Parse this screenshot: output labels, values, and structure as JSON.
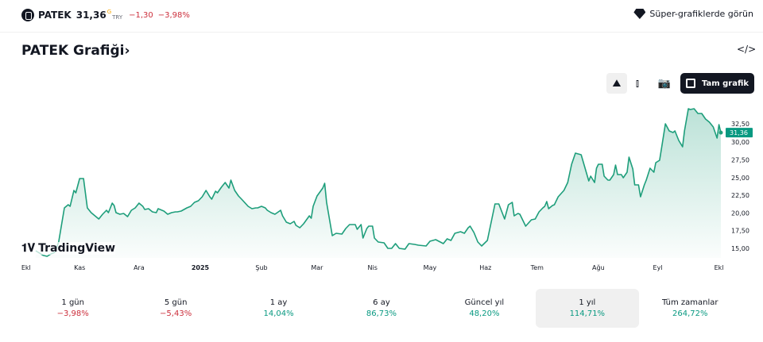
{
  "header": {
    "symbol": "PATEK",
    "price": "31,36",
    "price_flag": "G",
    "currency": "TRY",
    "change": "−1,30",
    "change_percent": "−3,98%",
    "super_charts_label": "Süper-grafiklerde görün"
  },
  "title": "PATEK Grafiği",
  "title_chevron": "›",
  "embed_icon": "</>",
  "toolbar": {
    "full_chart_label": "Tam grafik"
  },
  "watermark": "TradingView",
  "colors": {
    "line": "#1e9e7b",
    "up": "#089981",
    "down": "#cc2f3c"
  },
  "chart_data": {
    "type": "area",
    "title": "PATEK",
    "x_unit": "days since start",
    "xlim": [
      0,
      365
    ],
    "ylim": [
      13.5,
      35.5
    ],
    "y_ticks": [
      "15,00",
      "17,50",
      "20,00",
      "22,50",
      "25,00",
      "27,50",
      "30,00",
      "32,50"
    ],
    "y_tick_values": [
      15,
      17.5,
      20,
      22.5,
      25,
      27.5,
      30,
      32.5
    ],
    "x_ticks": [
      {
        "label": "Ekl",
        "day": 2
      },
      {
        "label": "Kas",
        "day": 30
      },
      {
        "label": "Ara",
        "day": 61
      },
      {
        "label": "2025",
        "day": 93,
        "bold": true
      },
      {
        "label": "Şub",
        "day": 125
      },
      {
        "label": "Mar",
        "day": 154
      },
      {
        "label": "Nis",
        "day": 183
      },
      {
        "label": "May",
        "day": 213
      },
      {
        "label": "Haz",
        "day": 242
      },
      {
        "label": "Tem",
        "day": 269
      },
      {
        "label": "Ağu",
        "day": 301
      },
      {
        "label": "Eyl",
        "day": 332
      },
      {
        "label": "Ekl",
        "day": 364
      }
    ],
    "last_value_label": "31,36",
    "last_value": 31.36,
    "points": [
      [
        7,
        14.66
      ],
      [
        11,
        14.0
      ],
      [
        13,
        13.88
      ],
      [
        15,
        14.21
      ],
      [
        17,
        14.44
      ],
      [
        19,
        15.9
      ],
      [
        22,
        20.72
      ],
      [
        24,
        21.17
      ],
      [
        25,
        20.95
      ],
      [
        27,
        23.19
      ],
      [
        28,
        22.85
      ],
      [
        30,
        24.87
      ],
      [
        32,
        24.87
      ],
      [
        34,
        20.72
      ],
      [
        36,
        20.05
      ],
      [
        38,
        19.6
      ],
      [
        40,
        19.15
      ],
      [
        42,
        19.82
      ],
      [
        44,
        20.38
      ],
      [
        45,
        20.05
      ],
      [
        47,
        21.39
      ],
      [
        48,
        21.06
      ],
      [
        49,
        20.05
      ],
      [
        51,
        19.82
      ],
      [
        53,
        19.94
      ],
      [
        55,
        19.49
      ],
      [
        57,
        20.38
      ],
      [
        59,
        20.72
      ],
      [
        61,
        21.39
      ],
      [
        63,
        20.95
      ],
      [
        64,
        20.5
      ],
      [
        66,
        20.61
      ],
      [
        68,
        20.16
      ],
      [
        70,
        20.05
      ],
      [
        71,
        20.61
      ],
      [
        74,
        20.27
      ],
      [
        76,
        19.82
      ],
      [
        78,
        20.05
      ],
      [
        80,
        20.16
      ],
      [
        81,
        20.16
      ],
      [
        83,
        20.27
      ],
      [
        86,
        20.72
      ],
      [
        88,
        20.95
      ],
      [
        90,
        21.51
      ],
      [
        92,
        21.73
      ],
      [
        94,
        22.29
      ],
      [
        96,
        23.19
      ],
      [
        98,
        22.29
      ],
      [
        99,
        21.96
      ],
      [
        101,
        23.08
      ],
      [
        102,
        22.85
      ],
      [
        104,
        23.64
      ],
      [
        106,
        24.31
      ],
      [
        108,
        23.53
      ],
      [
        109,
        24.65
      ],
      [
        111,
        23.19
      ],
      [
        113,
        22.4
      ],
      [
        115,
        21.84
      ],
      [
        118,
        20.95
      ],
      [
        120,
        20.61
      ],
      [
        122,
        20.72
      ],
      [
        123,
        20.72
      ],
      [
        125,
        20.95
      ],
      [
        127,
        20.72
      ],
      [
        128,
        20.38
      ],
      [
        130,
        20.05
      ],
      [
        132,
        19.82
      ],
      [
        135,
        20.38
      ],
      [
        136,
        19.6
      ],
      [
        138,
        18.7
      ],
      [
        140,
        18.48
      ],
      [
        142,
        18.81
      ],
      [
        143,
        18.25
      ],
      [
        145,
        17.92
      ],
      [
        147,
        18.48
      ],
      [
        150,
        19.6
      ],
      [
        151,
        19.26
      ],
      [
        152,
        20.95
      ],
      [
        154,
        22.4
      ],
      [
        157,
        23.53
      ],
      [
        158,
        24.2
      ],
      [
        159,
        21.51
      ],
      [
        162,
        16.79
      ],
      [
        164,
        17.13
      ],
      [
        167,
        17.02
      ],
      [
        169,
        17.8
      ],
      [
        171,
        18.37
      ],
      [
        174,
        18.37
      ],
      [
        175,
        17.69
      ],
      [
        177,
        18.37
      ],
      [
        178,
        16.46
      ],
      [
        180,
        17.8
      ],
      [
        181,
        18.14
      ],
      [
        183,
        18.14
      ],
      [
        184,
        16.46
      ],
      [
        186,
        15.9
      ],
      [
        189,
        15.79
      ],
      [
        191,
        15.0
      ],
      [
        193,
        15.0
      ],
      [
        195,
        15.67
      ],
      [
        197,
        15.0
      ],
      [
        200,
        14.89
      ],
      [
        202,
        15.67
      ],
      [
        205,
        15.56
      ],
      [
        207,
        15.45
      ],
      [
        211,
        15.34
      ],
      [
        213,
        16.01
      ],
      [
        216,
        16.23
      ],
      [
        220,
        15.67
      ],
      [
        222,
        16.35
      ],
      [
        224,
        16.12
      ],
      [
        226,
        17.13
      ],
      [
        229,
        17.36
      ],
      [
        231,
        17.13
      ],
      [
        233,
        17.92
      ],
      [
        234,
        18.14
      ],
      [
        236,
        17.24
      ],
      [
        238,
        15.9
      ],
      [
        240,
        15.34
      ],
      [
        243,
        16.12
      ],
      [
        247,
        21.28
      ],
      [
        249,
        21.28
      ],
      [
        252,
        19.15
      ],
      [
        254,
        21.17
      ],
      [
        256,
        21.51
      ],
      [
        257,
        19.6
      ],
      [
        259,
        19.94
      ],
      [
        260,
        19.82
      ],
      [
        263,
        18.14
      ],
      [
        266,
        19.04
      ],
      [
        268,
        19.15
      ],
      [
        270,
        20.16
      ],
      [
        272,
        20.72
      ],
      [
        273,
        20.95
      ],
      [
        274,
        21.62
      ],
      [
        275,
        20.61
      ],
      [
        277,
        21.06
      ],
      [
        278,
        21.17
      ],
      [
        280,
        22.29
      ],
      [
        283,
        23.19
      ],
      [
        285,
        24.31
      ],
      [
        287,
        26.89
      ],
      [
        289,
        28.46
      ],
      [
        292,
        28.24
      ],
      [
        296,
        24.54
      ],
      [
        297,
        25.21
      ],
      [
        299,
        24.31
      ],
      [
        300,
        26.33
      ],
      [
        301,
        26.89
      ],
      [
        303,
        26.89
      ],
      [
        304,
        25.21
      ],
      [
        306,
        24.65
      ],
      [
        307,
        24.65
      ],
      [
        309,
        25.43
      ],
      [
        310,
        26.78
      ],
      [
        311,
        25.43
      ],
      [
        313,
        25.43
      ],
      [
        314,
        24.98
      ],
      [
        316,
        25.77
      ],
      [
        317,
        27.9
      ],
      [
        319,
        26.22
      ],
      [
        320,
        23.97
      ],
      [
        322,
        23.97
      ],
      [
        323,
        22.29
      ],
      [
        325,
        23.97
      ],
      [
        326,
        24.65
      ],
      [
        328,
        26.33
      ],
      [
        330,
        25.77
      ],
      [
        331,
        27.12
      ],
      [
        333,
        27.45
      ],
      [
        334,
        29.13
      ],
      [
        336,
        32.61
      ],
      [
        338,
        31.6
      ],
      [
        340,
        31.38
      ],
      [
        341,
        31.6
      ],
      [
        343,
        30.26
      ],
      [
        345,
        29.36
      ],
      [
        346,
        31.6
      ],
      [
        348,
        34.74
      ],
      [
        349,
        34.63
      ],
      [
        351,
        34.74
      ],
      [
        353,
        34.07
      ],
      [
        355,
        34.07
      ],
      [
        357,
        33.29
      ],
      [
        359,
        32.84
      ],
      [
        361,
        32.16
      ],
      [
        363,
        30.59
      ],
      [
        364,
        32.5
      ],
      [
        365,
        31.36
      ]
    ]
  },
  "periods": [
    {
      "label": "1 gün",
      "value": "−3,98%",
      "dir": "neg"
    },
    {
      "label": "5 gün",
      "value": "−5,43%",
      "dir": "neg"
    },
    {
      "label": "1 ay",
      "value": "14,04%",
      "dir": "pos"
    },
    {
      "label": "6 ay",
      "value": "86,73%",
      "dir": "pos"
    },
    {
      "label": "Güncel yıl",
      "value": "48,20%",
      "dir": "pos"
    },
    {
      "label": "1 yıl",
      "value": "114,71%",
      "dir": "pos",
      "selected": true
    },
    {
      "label": "Tüm zamanlar",
      "value": "264,72%",
      "dir": "pos"
    }
  ]
}
